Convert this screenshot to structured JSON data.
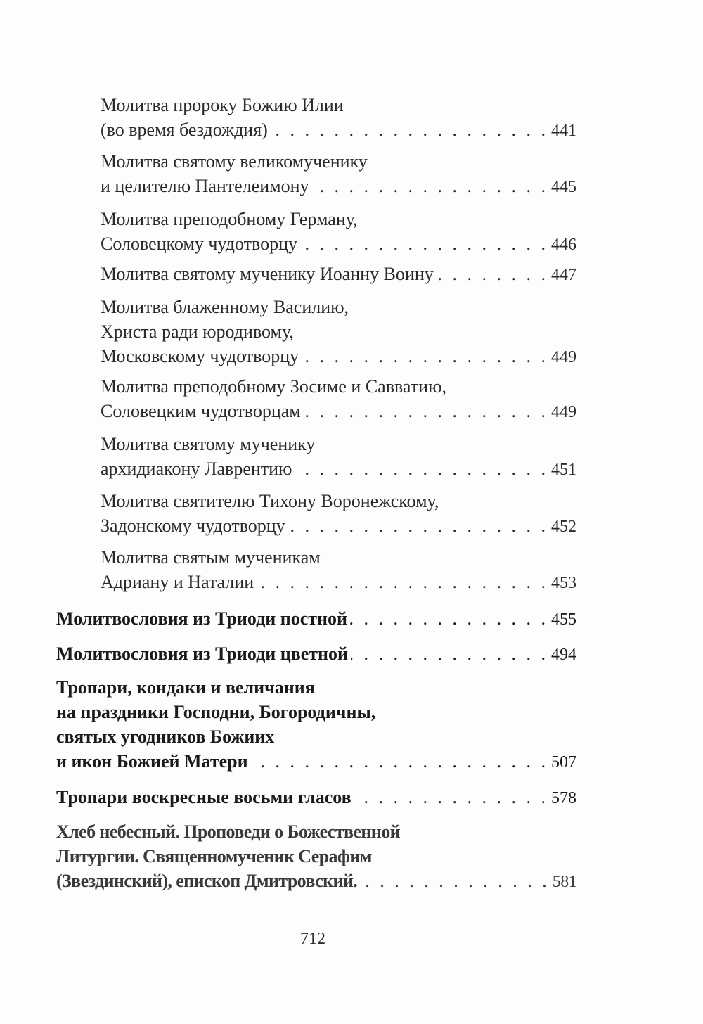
{
  "entries": [
    {
      "lines": [
        "Молитва пророку Божию Илии",
        "(во время бездождия)"
      ],
      "page": "441",
      "style": "sub"
    },
    {
      "lines": [
        "Молитва святому великомученику",
        "и целителю Пантелеимону"
      ],
      "page": "445",
      "style": "sub"
    },
    {
      "lines": [
        "Молитва преподобному Герману,",
        "Соловецкому чудотворцу"
      ],
      "page": "446",
      "style": "sub"
    },
    {
      "lines": [
        "Молитва святому мученику Иоанну Воину"
      ],
      "page": "447",
      "style": "sub"
    },
    {
      "lines": [
        "Молитва блаженному Василию,",
        "Христа ради юродивому,",
        "Московскому чудотворцу"
      ],
      "page": "449",
      "style": "sub"
    },
    {
      "lines": [
        "Молитва преподобному Зосиме и Савватию,",
        "Соловецким чудотворцам"
      ],
      "page": "449",
      "style": "sub"
    },
    {
      "lines": [
        "Молитва святому мученику",
        "архидиакону Лаврентию"
      ],
      "page": "451",
      "style": "sub"
    },
    {
      "lines": [
        "Молитва святителю Тихону Воронежскому,",
        "Задонскому чудотворцу"
      ],
      "page": "452",
      "style": "sub"
    },
    {
      "lines": [
        "Молитва святым мученикам",
        "Адриану и Наталии"
      ],
      "page": "453",
      "style": "sub"
    },
    {
      "lines": [
        "Молитвословия из Триоди постной"
      ],
      "page": "455",
      "style": "main"
    },
    {
      "lines": [
        "Молитвословия из Триоди цветной"
      ],
      "page": "494",
      "style": "main"
    },
    {
      "lines": [
        "Тропари, кондаки и величания",
        "на праздники Господни, Богородичны,",
        "святых угодников Божиих",
        "и икон Божией Матери"
      ],
      "page": "507",
      "style": "main"
    },
    {
      "lines": [
        "Тропари воскресные восьми гласов"
      ],
      "page": "578",
      "style": "main"
    },
    {
      "lines": [
        "Хлеб небесный. Проповеди о Божественной",
        "Литургии. Священномученик Серафим",
        "(Звездинский), епископ Дмитровский."
      ],
      "page": "581",
      "style": "semi"
    }
  ],
  "folio": "712"
}
